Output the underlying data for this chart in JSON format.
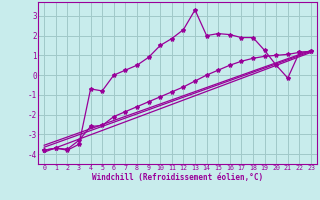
{
  "xlabel": "Windchill (Refroidissement éolien,°C)",
  "background_color": "#c8ecec",
  "grid_color": "#a0c8c8",
  "line_color": "#990099",
  "xlim": [
    -0.5,
    23.5
  ],
  "ylim": [
    -4.5,
    3.7
  ],
  "yticks": [
    -4,
    -3,
    -2,
    -1,
    0,
    1,
    2,
    3
  ],
  "xticks": [
    0,
    1,
    2,
    3,
    4,
    5,
    6,
    7,
    8,
    9,
    10,
    11,
    12,
    13,
    14,
    15,
    16,
    17,
    18,
    19,
    20,
    21,
    22,
    23
  ],
  "xtick_labels": [
    "0",
    "1",
    "2",
    "3",
    "4",
    "5",
    "6",
    "7",
    "8",
    "9",
    "10",
    "11",
    "12",
    "13",
    "14",
    "15",
    "16",
    "17",
    "18",
    "19",
    "20",
    "21",
    "22",
    "23"
  ],
  "main_x": [
    0,
    1,
    2,
    3,
    4,
    5,
    6,
    7,
    8,
    9,
    10,
    11,
    12,
    13,
    14,
    15,
    16,
    17,
    18,
    19,
    20,
    21,
    22,
    23
  ],
  "main_y": [
    -3.8,
    -3.7,
    -3.8,
    -3.5,
    -0.7,
    -0.8,
    0.0,
    0.25,
    0.5,
    0.9,
    1.5,
    1.85,
    2.3,
    3.3,
    2.0,
    2.1,
    2.05,
    1.9,
    1.9,
    1.25,
    0.5,
    -0.15,
    1.15,
    1.2
  ],
  "line2_x": [
    0,
    1,
    2,
    3,
    4,
    5,
    6,
    7,
    8,
    9,
    10,
    11,
    12,
    13,
    14,
    15,
    16,
    17,
    18,
    19,
    20,
    21,
    22,
    23
  ],
  "line2_y": [
    -3.8,
    -3.7,
    -3.75,
    -3.3,
    -2.6,
    -2.55,
    -2.1,
    -1.85,
    -1.6,
    -1.35,
    -1.1,
    -0.85,
    -0.6,
    -0.3,
    0.0,
    0.25,
    0.5,
    0.7,
    0.85,
    0.95,
    1.0,
    1.05,
    1.15,
    1.2
  ],
  "line3_x": [
    0,
    23
  ],
  "line3_y": [
    -3.9,
    1.15
  ],
  "line4_x": [
    0,
    23
  ],
  "line4_y": [
    -3.65,
    1.2
  ],
  "line5_x": [
    0,
    23
  ],
  "line5_y": [
    -3.55,
    1.25
  ]
}
